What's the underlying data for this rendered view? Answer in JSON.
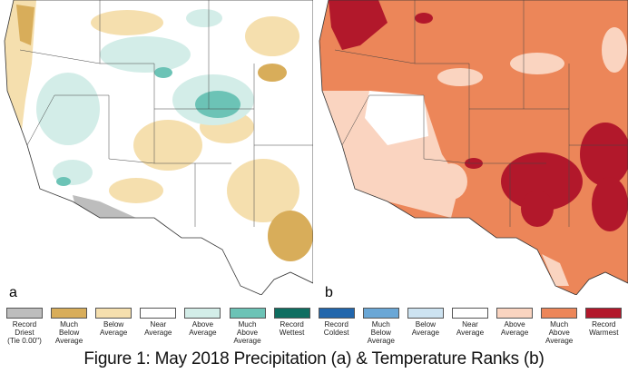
{
  "panels": [
    {
      "label": "a",
      "kind": "precipitation"
    },
    {
      "label": "b",
      "kind": "temperature"
    }
  ],
  "precip_legend": [
    {
      "label": "Record\nDriest\n(Tie 0.00\")",
      "color": "#bdbdbd"
    },
    {
      "label": "Much\nBelow\nAverage",
      "color": "#d8ad5a"
    },
    {
      "label": "Below\nAverage",
      "color": "#f5dfae"
    },
    {
      "label": "Near\nAverage",
      "color": "#ffffff"
    },
    {
      "label": "Above\nAverage",
      "color": "#d3ede8"
    },
    {
      "label": "Much\nAbove\nAverage",
      "color": "#6cc3b6"
    },
    {
      "label": "Record\nWettest",
      "color": "#0f6e61"
    }
  ],
  "temp_legend": [
    {
      "label": "Record\nColdest",
      "color": "#2166ac"
    },
    {
      "label": "Much\nBelow\nAverage",
      "color": "#6aa7d6"
    },
    {
      "label": "Below\nAverage",
      "color": "#cde3f1"
    },
    {
      "label": "Near\nAverage",
      "color": "#ffffff"
    },
    {
      "label": "Above\nAverage",
      "color": "#fad4c0"
    },
    {
      "label": "Much\nAbove\nAverage",
      "color": "#ec8659"
    },
    {
      "label": "Record\nWarmest",
      "color": "#b2182b"
    }
  ],
  "caption": "Figure 1: May 2018 Precipitation (a) & Temperature Ranks (b)"
}
